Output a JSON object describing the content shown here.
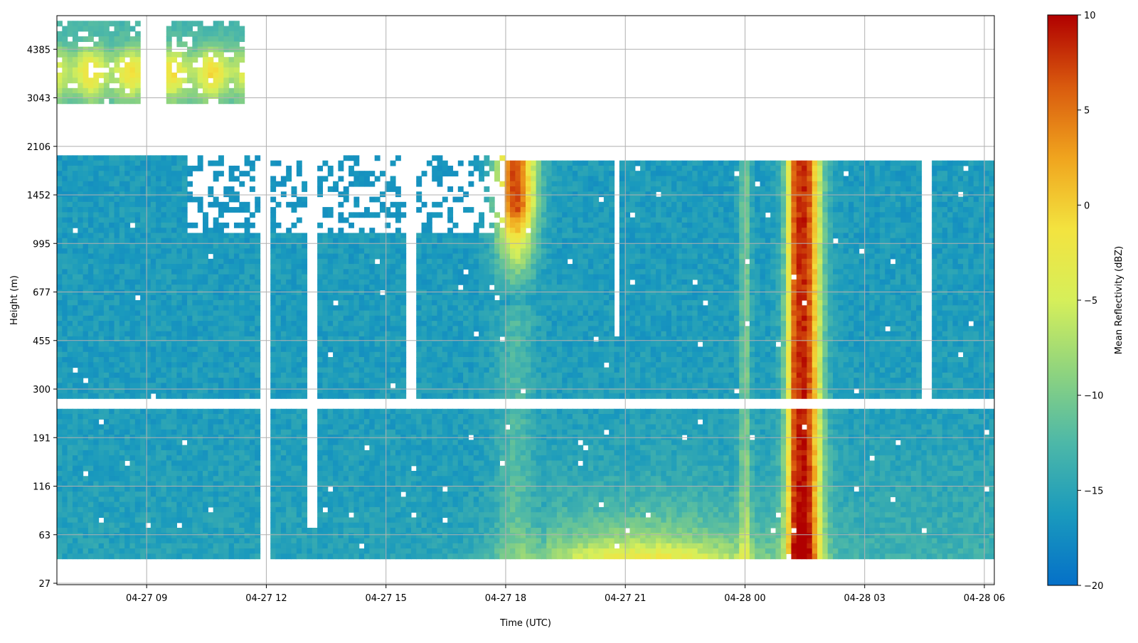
{
  "chart_data": {
    "type": "heatmap",
    "xlabel": "Time (UTC)",
    "ylabel": "Height (m)",
    "colorbar_label": "Mean Reflectivity (dBZ)",
    "grid": true,
    "x_range": [
      "04-27 06:45",
      "04-28 06:15"
    ],
    "x_ticks": [
      "04-27 09",
      "04-27 12",
      "04-27 15",
      "04-27 18",
      "04-27 21",
      "04-28 00",
      "04-28 03",
      "04-28 06"
    ],
    "y_ticks": [
      "27",
      "63",
      "116",
      "191",
      "300",
      "455",
      "677",
      "995",
      "1452",
      "2106",
      "3043",
      "4385"
    ],
    "colorbar": {
      "range": [
        -20,
        10
      ],
      "ticks": [
        "10",
        "5",
        "0",
        "−5",
        "−10",
        "−15",
        "−20"
      ],
      "colormap": [
        "#0570c8",
        "#1a9abd",
        "#4db8a8",
        "#8fd47e",
        "#d6ef5a",
        "#f3e33f",
        "#f0a41e",
        "#d95a0e",
        "#b00000"
      ]
    },
    "background_reflectivity_dBZ": -16,
    "features": [
      {
        "name": "upper-level cloud patches",
        "time_start": "04-27 06:45",
        "time_end": "04-27 15:30",
        "height_m": [
          2900,
          5500
        ],
        "peak_dBZ": -2
      },
      {
        "name": "boundary-layer echo",
        "time_start": "04-27 06:45",
        "time_end": "04-28 06:15",
        "height_m": [
          40,
          2000
        ],
        "peak_dBZ": -14
      },
      {
        "name": "convective column",
        "time": "04-27 18:15",
        "height_m": [
          900,
          1900
        ],
        "peak_dBZ": 7
      },
      {
        "name": "surface enhancement",
        "time_start": "04-27 19:30",
        "time_end": "04-27 23:30",
        "height_m": [
          40,
          70
        ],
        "peak_dBZ": -3
      },
      {
        "name": "precipitation shaft",
        "time": "04-28 01:30",
        "height_m": [
          40,
          1900
        ],
        "peak_dBZ": 8
      }
    ]
  }
}
